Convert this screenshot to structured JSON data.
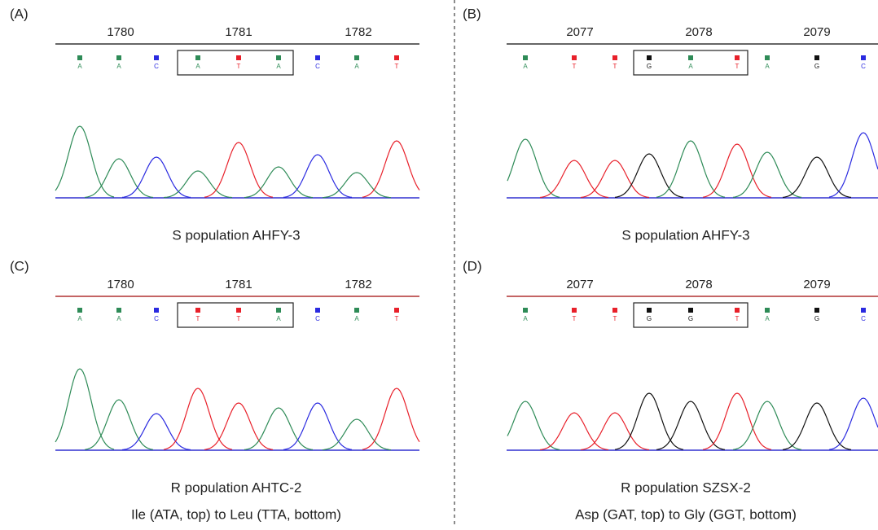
{
  "base_colors": {
    "A": "#2e8b57",
    "T": "#e8202a",
    "C": "#2a2ae0",
    "G": "#111111"
  },
  "panels": [
    {
      "label": "(A)",
      "positions": [
        "1780",
        "1781",
        "1782"
      ],
      "bases": [
        "A",
        "A",
        "C",
        "A",
        "T",
        "A",
        "C",
        "A",
        "T"
      ],
      "caption": "S population AHFY-3"
    },
    {
      "label": "(B)",
      "positions": [
        "2077",
        "2078",
        "2079"
      ],
      "bases": [
        "A",
        "T",
        "T",
        "G",
        "A",
        "T",
        "A",
        "G",
        "C"
      ],
      "caption": "S population AHFY-3"
    },
    {
      "label": "(C)",
      "positions": [
        "1780",
        "1781",
        "1782"
      ],
      "bases": [
        "A",
        "A",
        "C",
        "T",
        "T",
        "A",
        "C",
        "A",
        "T"
      ],
      "caption": "R population AHTC-2",
      "note": "Ile (ATA, top) to Leu (TTA, bottom)"
    },
    {
      "label": "(D)",
      "positions": [
        "2077",
        "2078",
        "2079"
      ],
      "bases": [
        "A",
        "T",
        "T",
        "G",
        "G",
        "T",
        "A",
        "G",
        "C"
      ],
      "caption": "R population SZSX-2",
      "note": "Asp (GAT, top) to Gly (GGT, bottom)"
    }
  ]
}
